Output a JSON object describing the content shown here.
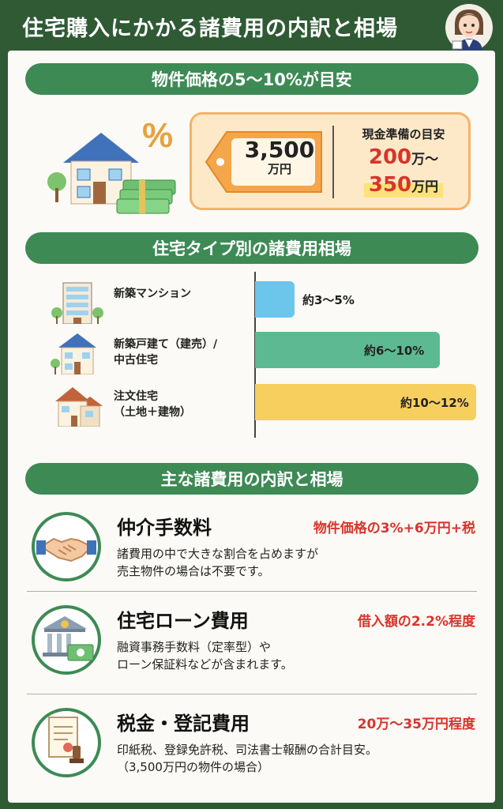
{
  "header": {
    "title": "住宅購入にかかる諸費用の内訳と相場"
  },
  "section1": {
    "heading": "物件価格の5〜10%が目安",
    "percent_symbol": "%",
    "tag_amount": "3,500",
    "tag_unit": "万円",
    "cash_label": "現金準備の目安",
    "cash_min": "200",
    "cash_min_unit": "万〜",
    "cash_max": "350",
    "cash_max_unit": "万円"
  },
  "section2": {
    "heading": "住宅タイプ別の諸費用相場",
    "chart_data": {
      "type": "bar",
      "orientation": "horizontal",
      "categories": [
        "新築マンション",
        "新築戸建て（建売）/ 中古住宅",
        "注文住宅（土地＋建物）"
      ],
      "category_lines": [
        [
          "新築マンション"
        ],
        [
          "新築戸建て（建売）/",
          "中古住宅"
        ],
        [
          "注文住宅",
          "（土地＋建物）"
        ]
      ],
      "ranges": [
        [
          3,
          5
        ],
        [
          6,
          10
        ],
        [
          10,
          12
        ]
      ],
      "labels": [
        "約3〜5%",
        "約6〜10%",
        "約10〜12%"
      ],
      "colors": [
        "#6cc6ec",
        "#5db992",
        "#f7cf5e"
      ],
      "xlim": [
        0,
        12
      ]
    }
  },
  "section3": {
    "heading": "主な諸費用の内訳と相場",
    "items": [
      {
        "title": "仲介手数料",
        "price": "物件価格の3%+6万円+税",
        "desc1": "諸費用の中で大きな割合を占めますが",
        "desc2": "売主物件の場合は不要です。",
        "icon": "handshake-icon"
      },
      {
        "title": "住宅ローン費用",
        "price": "借入額の2.2%程度",
        "desc1": "融資事務手数料（定率型）や",
        "desc2": "ローン保証料などが含まれます。",
        "icon": "bank-icon"
      },
      {
        "title": "税金・登記費用",
        "price": "20万〜35万円程度",
        "desc1": "印紙税、登録免許税、司法書士報酬の合計目安。",
        "desc2": "（3,500万円の物件の場合）",
        "icon": "document-stamp-icon"
      }
    ]
  },
  "colors": {
    "header_bg": "#2f5a34",
    "pill_bg": "#3d8a55",
    "accent_red": "#d9342b",
    "price_box_bg": "#fde9c8"
  }
}
